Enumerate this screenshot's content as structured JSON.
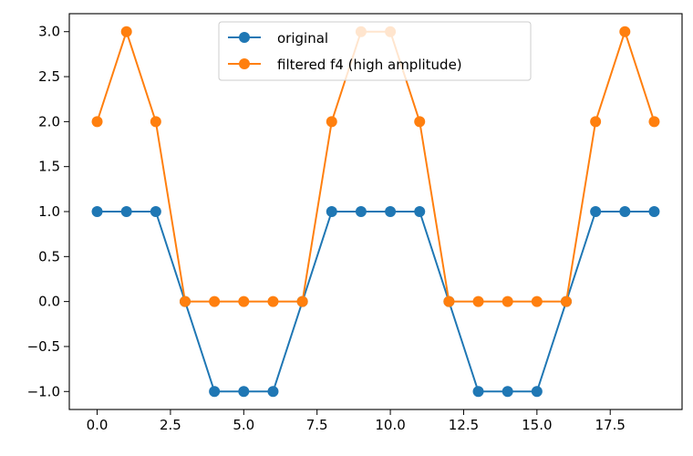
{
  "chart_data": {
    "type": "line",
    "title": "",
    "xlabel": "",
    "ylabel": "",
    "xlim": [
      -0.95,
      19.95
    ],
    "ylim": [
      -1.2,
      3.2
    ],
    "xticks": [
      0.0,
      2.5,
      5.0,
      7.5,
      10.0,
      12.5,
      15.0,
      17.5
    ],
    "xtick_labels": [
      "0.0",
      "2.5",
      "5.0",
      "7.5",
      "10.0",
      "12.5",
      "15.0",
      "17.5"
    ],
    "yticks": [
      -1.0,
      -0.5,
      0.0,
      0.5,
      1.0,
      1.5,
      2.0,
      2.5,
      3.0
    ],
    "ytick_labels": [
      "−1.0",
      "−0.5",
      "0.0",
      "0.5",
      "1.0",
      "1.5",
      "2.0",
      "2.5",
      "3.0"
    ],
    "grid": false,
    "legend_position": "top-center",
    "x": [
      0,
      1,
      2,
      3,
      4,
      5,
      6,
      7,
      8,
      9,
      10,
      11,
      12,
      13,
      14,
      15,
      16,
      17,
      18,
      19
    ],
    "series": [
      {
        "name": "original",
        "color": "#1f77b4",
        "values": [
          1,
          1,
          1,
          0,
          -1,
          -1,
          -1,
          0,
          1,
          1,
          1,
          1,
          0,
          -1,
          -1,
          -1,
          0,
          1,
          1,
          1
        ]
      },
      {
        "name": "filtered f4 (high amplitude)",
        "color": "#ff7f0e",
        "values": [
          2,
          3,
          2,
          0,
          0,
          0,
          0,
          0,
          2,
          3,
          3,
          2,
          0,
          0,
          0,
          0,
          0,
          2,
          3,
          2
        ]
      }
    ]
  }
}
